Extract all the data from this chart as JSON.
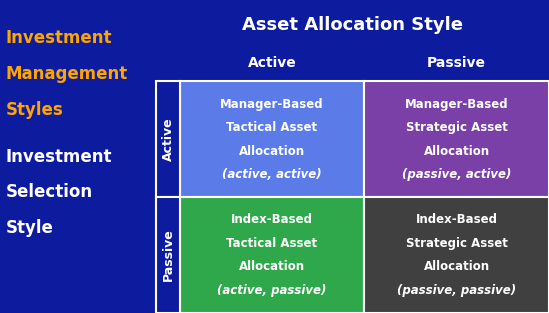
{
  "bg_color": "#0d1b9e",
  "title_top": "Asset Allocation Style",
  "title_top_color": "#ffffff",
  "col_headers": [
    "Active",
    "Passive"
  ],
  "col_header_color": "#ffffff",
  "row_label_top": "Active",
  "row_label_bottom": "Passive",
  "row_label_color": "#ffffff",
  "left_title_lines": [
    "Investment",
    "Management",
    "Styles"
  ],
  "left_title_color": "#ffa500",
  "left_subtitle_lines": [
    "Investment",
    "Selection",
    "Style"
  ],
  "left_subtitle_color": "#ffffff",
  "cells": [
    {
      "row": 0,
      "col": 0,
      "bg": "#5b7be8",
      "lines": [
        "Manager-Based",
        "Tactical Asset",
        "Allocation",
        "(active, active)"
      ]
    },
    {
      "row": 0,
      "col": 1,
      "bg": "#7b3fa8",
      "lines": [
        "Manager-Based",
        "Strategic Asset",
        "Allocation",
        "(passive, active)"
      ]
    },
    {
      "row": 1,
      "col": 0,
      "bg": "#2ea84a",
      "lines": [
        "Index-Based",
        "Tactical Asset",
        "Allocation",
        "(active, passive)"
      ]
    },
    {
      "row": 1,
      "col": 1,
      "bg": "#404040",
      "lines": [
        "Index-Based",
        "Strategic Asset",
        "Allocation",
        "(passive, passive)"
      ]
    }
  ],
  "cell_text_color": "#ffffff",
  "figsize": [
    5.49,
    3.13
  ],
  "dpi": 100
}
